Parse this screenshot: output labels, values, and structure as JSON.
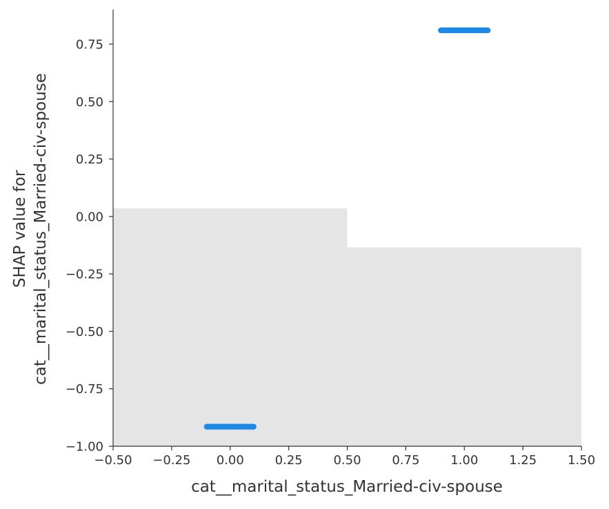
{
  "chart_data": {
    "type": "scatter",
    "title": "",
    "xlabel": "cat__marital_status_Married-civ-spouse",
    "ylabel_lines": [
      "SHAP value for",
      "cat__marital_status_Married-civ-spouse"
    ],
    "xlim": [
      -0.5,
      1.5
    ],
    "ylim": [
      -1.0,
      0.9
    ],
    "x_ticks": [
      -0.5,
      -0.25,
      0.0,
      0.25,
      0.5,
      0.75,
      1.0,
      1.25,
      1.5
    ],
    "x_tick_labels": [
      "−0.50",
      "−0.25",
      "0.00",
      "0.25",
      "0.50",
      "0.75",
      "1.00",
      "1.25",
      "1.50"
    ],
    "y_ticks": [
      -1.0,
      -0.75,
      -0.5,
      -0.25,
      0.0,
      0.25,
      0.5,
      0.75
    ],
    "y_tick_labels": [
      "−1.00",
      "−0.75",
      "−0.50",
      "−0.25",
      "0.00",
      "0.25",
      "0.50",
      "0.75"
    ],
    "grid": false,
    "point_color": "#1e88e5",
    "histogram_color": "#e5e5e5",
    "background_histogram": [
      {
        "x0": -0.5,
        "x1": 0.5,
        "top": 0.035
      },
      {
        "x0": 0.5,
        "x1": 1.5,
        "top": -0.135
      }
    ],
    "series": [
      {
        "x_min": -0.1,
        "x_max": 0.1,
        "y": -0.915,
        "count": 40
      },
      {
        "x_min": 0.9,
        "x_max": 1.1,
        "y": 0.81,
        "count": 40
      }
    ]
  }
}
